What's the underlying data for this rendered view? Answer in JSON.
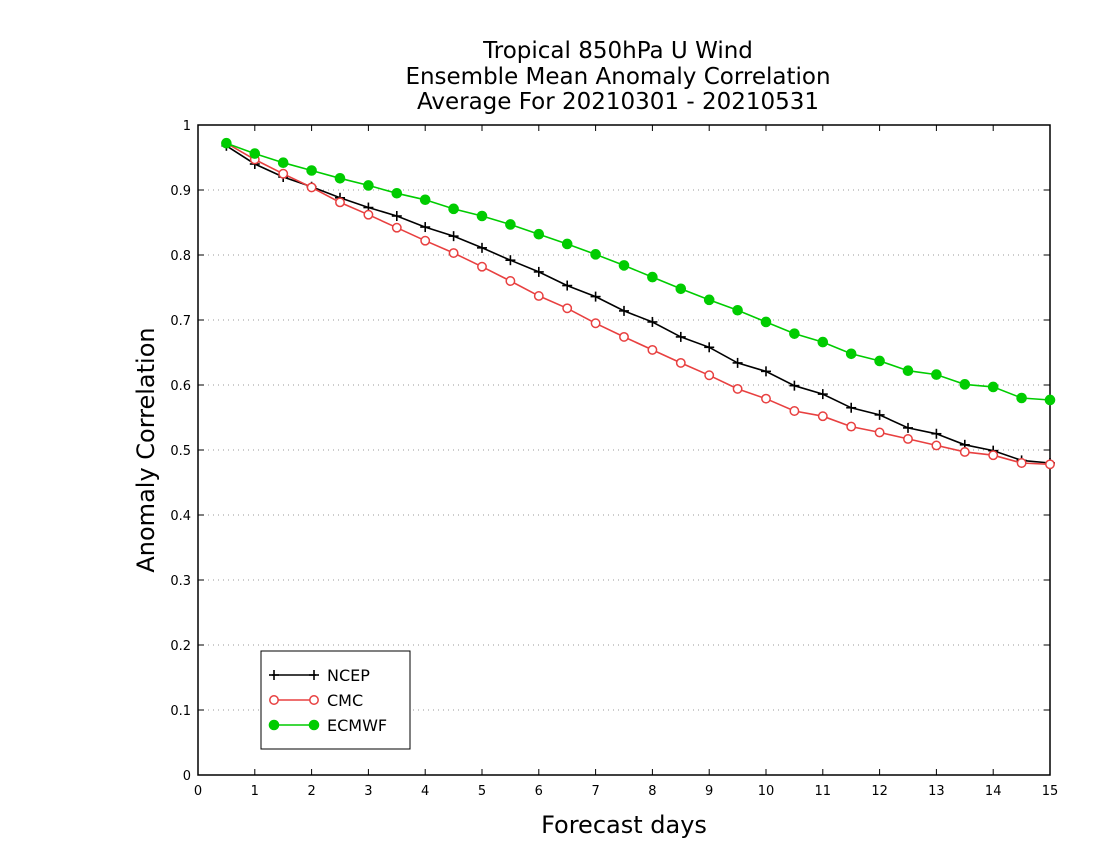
{
  "chart_data": {
    "type": "line",
    "title_lines": [
      "Tropical 850hPa U Wind",
      "Ensemble Mean Anomaly Correlation",
      "Average For 20210301 - 20210531"
    ],
    "xlabel": "Forecast days",
    "ylabel": "Anomaly Correlation",
    "xlim": [
      0,
      15
    ],
    "ylim": [
      0,
      1
    ],
    "x_ticks": [
      0,
      1,
      2,
      3,
      4,
      5,
      6,
      7,
      8,
      9,
      10,
      11,
      12,
      13,
      14,
      15
    ],
    "y_ticks": [
      0,
      0.1,
      0.2,
      0.3,
      0.4,
      0.5,
      0.6,
      0.7,
      0.8,
      0.9,
      1
    ],
    "x_tick_labels": [
      "0",
      "1",
      "2",
      "3",
      "4",
      "5",
      "6",
      "7",
      "8",
      "9",
      "10",
      "11",
      "12",
      "13",
      "14",
      "15"
    ],
    "y_tick_labels": [
      "0",
      "0.1",
      "0.2",
      "0.3",
      "0.4",
      "0.5",
      "0.6",
      "0.7",
      "0.8",
      "0.9",
      "1"
    ],
    "grid": "horizontal dotted",
    "legend_position": "bottom-left",
    "x": [
      0.5,
      1,
      1.5,
      2,
      2.5,
      3,
      3.5,
      4,
      4.5,
      5,
      5.5,
      6,
      6.5,
      7,
      7.5,
      8,
      8.5,
      9,
      9.5,
      10,
      10.5,
      11,
      11.5,
      12,
      12.5,
      13,
      13.5,
      14,
      14.5,
      15
    ],
    "series": [
      {
        "name": "NCEP",
        "color": "#000000",
        "marker": "plus",
        "values": [
          0.968,
          0.94,
          0.92,
          0.905,
          0.888,
          0.873,
          0.86,
          0.843,
          0.829,
          0.811,
          0.792,
          0.774,
          0.753,
          0.736,
          0.714,
          0.697,
          0.674,
          0.658,
          0.634,
          0.621,
          0.599,
          0.586,
          0.565,
          0.554,
          0.534,
          0.525,
          0.508,
          0.499,
          0.484,
          0.48
        ]
      },
      {
        "name": "CMC",
        "color": "#e84040",
        "marker": "open-circle",
        "values": [
          0.972,
          0.947,
          0.925,
          0.904,
          0.881,
          0.862,
          0.842,
          0.822,
          0.803,
          0.782,
          0.76,
          0.737,
          0.718,
          0.695,
          0.674,
          0.654,
          0.634,
          0.615,
          0.594,
          0.579,
          0.56,
          0.552,
          0.536,
          0.527,
          0.517,
          0.507,
          0.497,
          0.492,
          0.48,
          0.478
        ]
      },
      {
        "name": "ECMWF",
        "color": "#00cc00",
        "marker": "filled-circle",
        "values": [
          0.972,
          0.956,
          0.942,
          0.93,
          0.918,
          0.907,
          0.895,
          0.885,
          0.871,
          0.86,
          0.847,
          0.832,
          0.817,
          0.801,
          0.784,
          0.766,
          0.748,
          0.731,
          0.715,
          0.697,
          0.679,
          0.666,
          0.648,
          0.637,
          0.622,
          0.616,
          0.601,
          0.597,
          0.58,
          0.577
        ]
      }
    ]
  }
}
